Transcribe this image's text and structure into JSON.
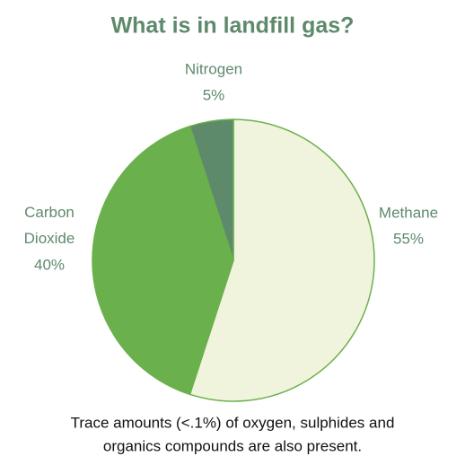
{
  "chart_data": {
    "type": "pie",
    "title": "What is in landfill gas?",
    "categories": [
      "Methane",
      "Carbon Dioxide",
      "Nitrogen"
    ],
    "values": [
      55,
      40,
      5
    ],
    "value_labels": [
      "55%",
      "40%",
      "5%"
    ],
    "colors": [
      "#f1f4dc",
      "#6ab04c",
      "#5e8a6c"
    ],
    "notes": [
      "Trace amounts (<.1%) of oxygen, sulphides and",
      "organics compounds are also present."
    ]
  }
}
